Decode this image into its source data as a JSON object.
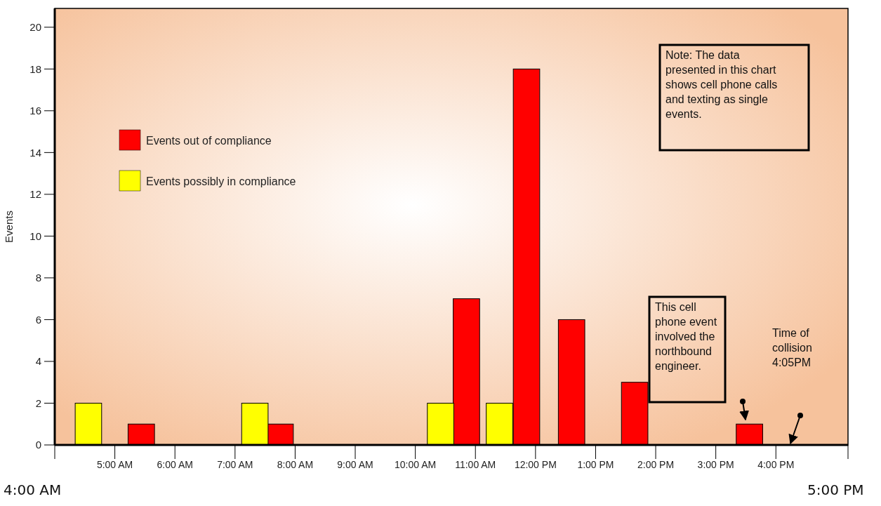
{
  "chart_data": {
    "type": "bar",
    "ylabel": "Events",
    "xlim": [
      4,
      17.2
    ],
    "ylim": [
      0,
      20.9
    ],
    "xticks": [
      {
        "value": 4,
        "label": null
      },
      {
        "value": 5,
        "label": "5:00 AM"
      },
      {
        "value": 6,
        "label": "6:00 AM"
      },
      {
        "value": 7,
        "label": "7:00 AM"
      },
      {
        "value": 8,
        "label": "8:00 AM"
      },
      {
        "value": 9,
        "label": "9:00 AM"
      },
      {
        "value": 10,
        "label": "10:00 AM"
      },
      {
        "value": 11,
        "label": "11:00 AM"
      },
      {
        "value": 12,
        "label": "12:00 PM"
      },
      {
        "value": 13,
        "label": "1:00 PM"
      },
      {
        "value": 14,
        "label": "2:00 PM"
      },
      {
        "value": 15,
        "label": "3:00 PM"
      },
      {
        "value": 16,
        "label": "4:00 PM"
      },
      {
        "value": 17.2,
        "label": null
      }
    ],
    "yticks": [
      0,
      2,
      4,
      6,
      8,
      10,
      12,
      14,
      16,
      18,
      20
    ],
    "series": [
      {
        "name": "Events out of compliance",
        "color": "#ff0000",
        "x": [
          5.44,
          7.75,
          10.85,
          11.85,
          12.6,
          13.65,
          15.56
        ],
        "values": [
          1,
          1,
          7,
          18,
          6,
          3,
          1
        ]
      },
      {
        "name": "Events possibly in compliance",
        "color": "#ffff00",
        "x": [
          4.56,
          7.33,
          10.42,
          11.4
        ],
        "values": [
          2,
          2,
          2,
          2
        ]
      }
    ],
    "legend": "top left",
    "grid": false,
    "annotations": [
      "Note: The data presented in this chart shows cell phone calls and texting as single events.",
      "This cell phone event involved the northbound engineer.",
      "Time of collision 4:05PM",
      "4:00 AM",
      "5:00 PM"
    ]
  }
}
